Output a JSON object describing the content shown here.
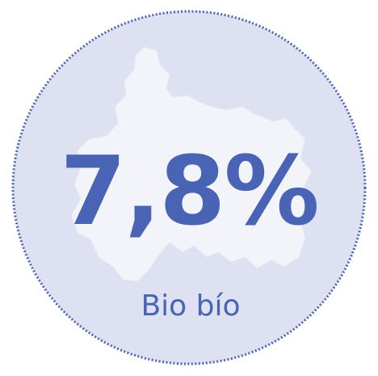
{
  "figure": {
    "value": "7,8%",
    "region": "Bio bío"
  }
}
